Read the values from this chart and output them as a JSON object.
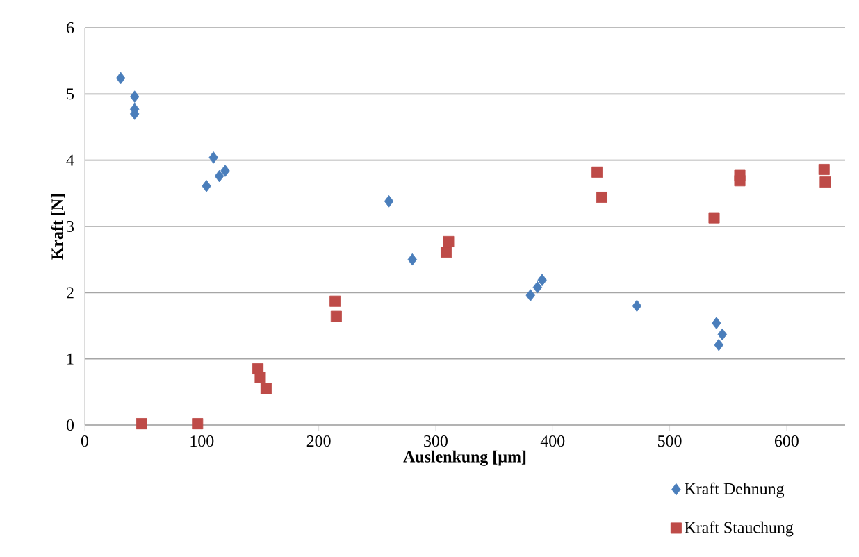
{
  "chart_data": {
    "type": "scatter",
    "xlabel": "Auslenkung [µm]",
    "ylabel": "Kraft  [N]",
    "xlim": [
      0,
      650
    ],
    "xticks": [
      0,
      100,
      200,
      300,
      400,
      500,
      600
    ],
    "ylim": [
      0,
      6
    ],
    "yticks": [
      0,
      1,
      2,
      3,
      4,
      5,
      6
    ],
    "grid": "y",
    "legend": "bottom right",
    "series": [
      {
        "name": "Kraft Dehnung",
        "color": "#4a7ebb",
        "marker": "diamond",
        "x": [
          30.7,
          42.6,
          42.6,
          42.6,
          110,
          104,
          115,
          120,
          260,
          280,
          381,
          387,
          391,
          472,
          540,
          545,
          542
        ],
        "values": [
          5.24,
          4.96,
          4.77,
          4.7,
          4.04,
          3.61,
          3.76,
          3.84,
          3.38,
          2.5,
          1.96,
          2.08,
          2.19,
          1.8,
          1.54,
          1.37,
          1.21
        ]
      },
      {
        "name": "Kraft Stauchung",
        "color": "#be4b48",
        "marker": "square",
        "x": [
          48.6,
          96.4,
          148,
          150,
          155,
          214,
          215,
          309,
          311,
          438,
          442,
          536,
          538,
          560,
          560,
          632,
          633
        ],
        "values": [
          0.02,
          0.02,
          0.85,
          0.72,
          0.55,
          1.87,
          1.64,
          2.61,
          2.77,
          3.82,
          3.44,
          null,
          3.13,
          3.77,
          3.69,
          3.86,
          3.67
        ]
      }
    ]
  }
}
